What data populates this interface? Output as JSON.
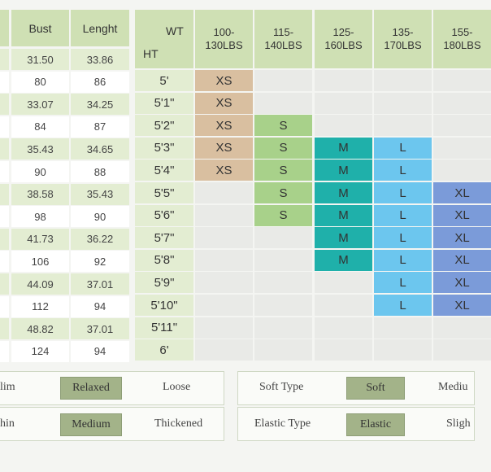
{
  "measure_table": {
    "headers": {
      "bust": "Bust",
      "length": "Lenght"
    },
    "rows": [
      {
        "bust": "31.50",
        "length": "33.86"
      },
      {
        "bust": "80",
        "length": "86"
      },
      {
        "bust": "33.07",
        "length": "34.25"
      },
      {
        "bust": "84",
        "length": "87"
      },
      {
        "bust": "35.43",
        "length": "34.65"
      },
      {
        "bust": "90",
        "length": "88"
      },
      {
        "bust": "38.58",
        "length": "35.43"
      },
      {
        "bust": "98",
        "length": "90"
      },
      {
        "bust": "41.73",
        "length": "36.22"
      },
      {
        "bust": "106",
        "length": "92"
      },
      {
        "bust": "44.09",
        "length": "37.01"
      },
      {
        "bust": "112",
        "length": "94"
      },
      {
        "bust": "48.82",
        "length": "37.01"
      },
      {
        "bust": "124",
        "length": "94"
      }
    ]
  },
  "size_table": {
    "wt_label": "WT",
    "ht_label": "HT",
    "weights": [
      [
        "100-",
        "130LBS"
      ],
      [
        "115-",
        "140LBS"
      ],
      [
        "125-",
        "160LBS"
      ],
      [
        "135-",
        "170LBS"
      ],
      [
        "155-",
        "180LBS"
      ]
    ],
    "heights": [
      "5'",
      "5'1\"",
      "5'2\"",
      "5'3\"",
      "5'4\"",
      "5'5\"",
      "5'6\"",
      "5'7\"",
      "5'8\"",
      "5'9\"",
      "5'10\"",
      "5'11\"",
      "6'"
    ],
    "grid": [
      [
        "XS",
        "",
        "",
        "",
        ""
      ],
      [
        "XS",
        "",
        "",
        "",
        ""
      ],
      [
        "XS",
        "S",
        "",
        "",
        ""
      ],
      [
        "XS",
        "S",
        "M",
        "L",
        ""
      ],
      [
        "XS",
        "S",
        "M",
        "L",
        ""
      ],
      [
        "",
        "S",
        "M",
        "L",
        "XL"
      ],
      [
        "",
        "S",
        "M",
        "L",
        "XL"
      ],
      [
        "",
        "",
        "M",
        "L",
        "XL"
      ],
      [
        "",
        "",
        "M",
        "L",
        "XL"
      ],
      [
        "",
        "",
        "",
        "L",
        "XL"
      ],
      [
        "",
        "",
        "",
        "L",
        "XL"
      ],
      [
        "",
        "",
        "",
        "",
        ""
      ],
      [
        "",
        "",
        "",
        "",
        ""
      ]
    ]
  },
  "fit_scale": {
    "row1": {
      "left": "lim",
      "selected": "Relaxed",
      "right": "Loose"
    },
    "row2": {
      "left": "hin",
      "selected": "Medium",
      "right": "Thickened"
    }
  },
  "fabric_scale": {
    "row1": {
      "label": "Soft Type",
      "selected": "Soft",
      "right": "Mediu"
    },
    "row2": {
      "label": "Elastic Type",
      "selected": "Elastic",
      "right": "Sligh"
    }
  },
  "colors": {
    "header": "#cfe0b4",
    "XS": "#d9bfa0",
    "S": "#a8d18a",
    "M": "#1fb0aa",
    "L": "#6cc6ee",
    "XL": "#7b9bd9",
    "tag": "#a3b389"
  }
}
